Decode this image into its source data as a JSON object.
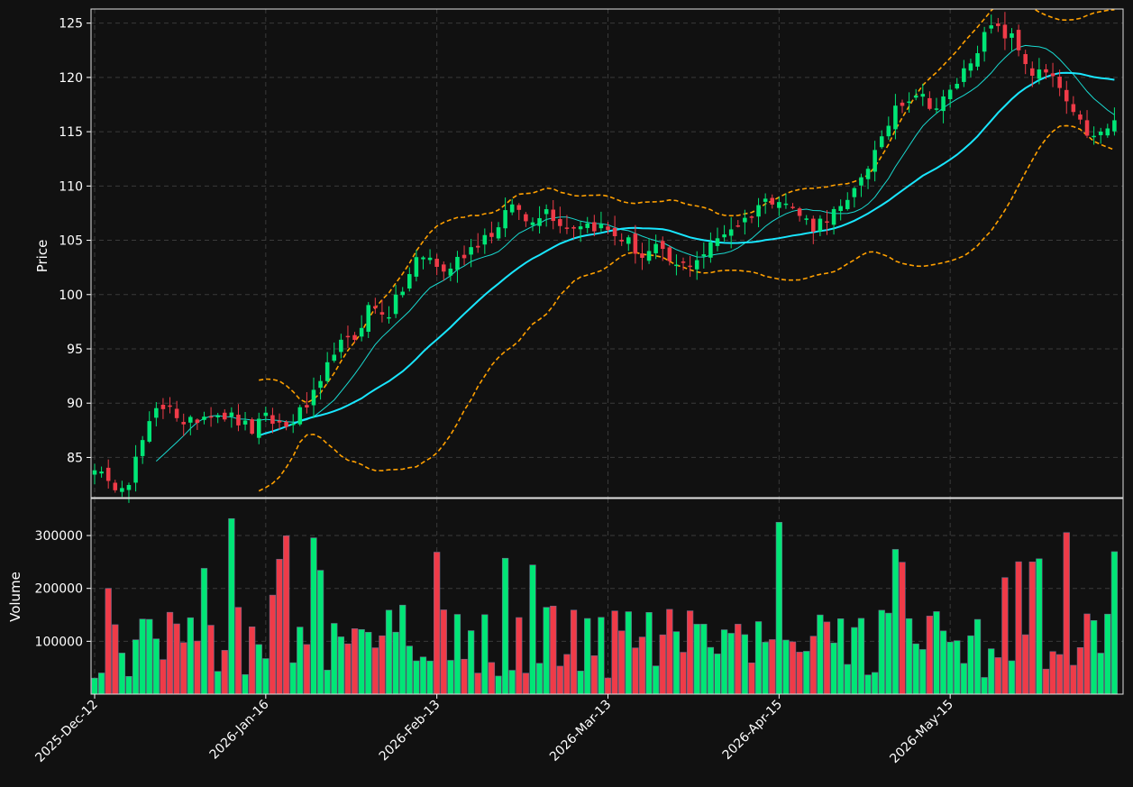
{
  "chart_data": {
    "type": "candlestick",
    "colors": {
      "background": "#111111",
      "up": "#00e676",
      "down": "#ef3b48",
      "ma_short": "#19d9d0",
      "ma_long": "#19e6ff",
      "bands": "#ffa000",
      "grid": "#3a3a3a",
      "frame": "#e0e0e0"
    },
    "price_axis": {
      "label": "Price",
      "ylim": [
        81.3,
        126.3
      ],
      "ticks": [
        85,
        90,
        95,
        100,
        105,
        110,
        115,
        120,
        125
      ],
      "grid": true
    },
    "volume_axis": {
      "label": "Volume",
      "ylim": [
        0,
        370000
      ],
      "ticks": [
        100000,
        200000,
        300000
      ],
      "tick_labels": [
        "100000",
        "200000",
        "300000"
      ],
      "grid": true
    },
    "x_ticks": [
      {
        "index": 0,
        "label": "2025-Dec-12"
      },
      {
        "index": 25,
        "label": "2026-Jan-16"
      },
      {
        "index": 50,
        "label": "2026-Feb-13"
      },
      {
        "index": 75,
        "label": "2026-Mar-13"
      },
      {
        "index": 100,
        "label": "2026-Apr-15"
      },
      {
        "index": 125,
        "label": "2026-May-15"
      }
    ],
    "bar_count": 150,
    "price_keys": [
      [
        0,
        84.3
      ],
      [
        2,
        82.3
      ],
      [
        5,
        83.0
      ],
      [
        7,
        86.5
      ],
      [
        9,
        89.2
      ],
      [
        11,
        90.1
      ],
      [
        13,
        87.7
      ],
      [
        15,
        88.6
      ],
      [
        17,
        89.3
      ],
      [
        20,
        88.7
      ],
      [
        23,
        87.5
      ],
      [
        25,
        88.6
      ],
      [
        28,
        87.8
      ],
      [
        31,
        89.8
      ],
      [
        33,
        91.5
      ],
      [
        35,
        95.0
      ],
      [
        38,
        96.0
      ],
      [
        40,
        98.8
      ],
      [
        43,
        98.3
      ],
      [
        45,
        100.5
      ],
      [
        47,
        103.2
      ],
      [
        49,
        103.4
      ],
      [
        51,
        102.0
      ],
      [
        54,
        103.8
      ],
      [
        57,
        105.4
      ],
      [
        59,
        106.0
      ],
      [
        61,
        108.5
      ],
      [
        63,
        106.8
      ],
      [
        66,
        107.8
      ],
      [
        69,
        106.2
      ],
      [
        71,
        106.6
      ],
      [
        74,
        106.2
      ],
      [
        76,
        105.5
      ],
      [
        78,
        104.8
      ],
      [
        80,
        103.5
      ],
      [
        82,
        104.2
      ],
      [
        85,
        102.5
      ],
      [
        87,
        103.0
      ],
      [
        89,
        103.8
      ],
      [
        92,
        105.8
      ],
      [
        95,
        106.9
      ],
      [
        97,
        108.3
      ],
      [
        100,
        109.1
      ],
      [
        102,
        107.8
      ],
      [
        105,
        106.3
      ],
      [
        107,
        107.2
      ],
      [
        110,
        108.2
      ],
      [
        112,
        111.0
      ],
      [
        115,
        114.0
      ],
      [
        117,
        117.5
      ],
      [
        120,
        118.6
      ],
      [
        123,
        117.2
      ],
      [
        125,
        118.6
      ],
      [
        127,
        120.6
      ],
      [
        129,
        122.8
      ],
      [
        131,
        124.6
      ],
      [
        134,
        123.6
      ],
      [
        137,
        120.4
      ],
      [
        139,
        120.3
      ],
      [
        141,
        119.0
      ],
      [
        143,
        116.3
      ],
      [
        146,
        114.3
      ],
      [
        149,
        115.8
      ]
    ],
    "series": [
      {
        "name": "",
        "kind": "ohlc"
      },
      {
        "name": "",
        "kind": "moving_average",
        "window": 10
      },
      {
        "name": "",
        "kind": "moving_average",
        "window": 25
      },
      {
        "name": "",
        "kind": "bollinger_upper"
      },
      {
        "name": "",
        "kind": "bollinger_lower"
      },
      {
        "name": "",
        "kind": "volume"
      }
    ]
  }
}
